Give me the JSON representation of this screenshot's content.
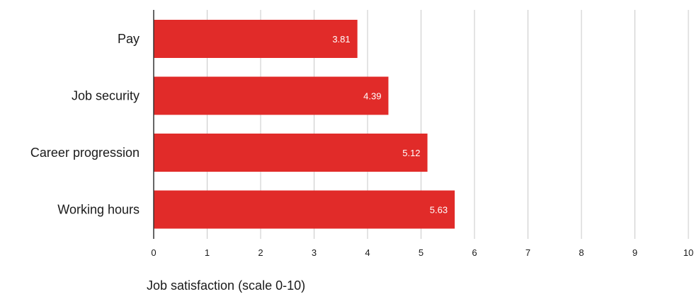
{
  "chart_data": {
    "type": "bar",
    "orientation": "horizontal",
    "categories": [
      "Pay",
      "Job security",
      "Career progression",
      "Working hours"
    ],
    "values": [
      3.81,
      4.39,
      5.12,
      5.63
    ],
    "data_labels": [
      "3.81",
      "4.39",
      "5.12",
      "5.63"
    ],
    "xlabel": "Job satisfaction (scale 0-10)",
    "ylabel": "",
    "xlim": [
      0,
      10
    ],
    "xticks": [
      "0",
      "1",
      "2",
      "3",
      "4",
      "5",
      "6",
      "7",
      "8",
      "9",
      "10"
    ],
    "grid": "vertical",
    "legend": "none",
    "colors": {
      "bar": "#e12b29",
      "grid": "#c8c8c8",
      "axis": "#333333"
    }
  }
}
